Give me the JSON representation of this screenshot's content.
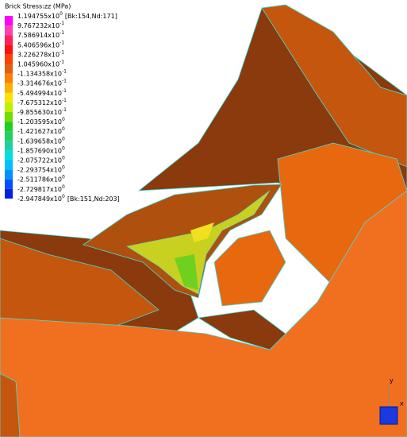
{
  "legend": {
    "title": "Brick Stress:zz  (MPa)",
    "colors": [
      "#ff00ff",
      "#ff40b0",
      "#ff2060",
      "#ff1010",
      "#ff4000",
      "#e06010",
      "#ff8000",
      "#ffb000",
      "#ffe000",
      "#c0f000",
      "#70e000",
      "#20d020",
      "#20d060",
      "#20d0a0",
      "#00e0e0",
      "#00c0ff",
      "#0090ff",
      "#0050ff",
      "#0020e0"
    ],
    "labels": [
      {
        "mantissa": "1.194755x10",
        "exp": "0",
        "note": "[Bk:154,Nd:171]"
      },
      {
        "mantissa": "9.767232x10",
        "exp": "-1"
      },
      {
        "mantissa": "7.586914x10",
        "exp": "-1"
      },
      {
        "mantissa": "5.406596x10",
        "exp": "-1"
      },
      {
        "mantissa": "3.226278x10",
        "exp": "-1"
      },
      {
        "mantissa": "1.045960x10",
        "exp": "-1"
      },
      {
        "mantissa": "-1.134358x10",
        "exp": "-1"
      },
      {
        "mantissa": "-3.314676x10",
        "exp": "-1"
      },
      {
        "mantissa": "-5.494994x10",
        "exp": "-1"
      },
      {
        "mantissa": "-7.675312x10",
        "exp": "-1"
      },
      {
        "mantissa": "-9.855630x10",
        "exp": "-1"
      },
      {
        "mantissa": "-1.203595x10",
        "exp": "0"
      },
      {
        "mantissa": "-1.421627x10",
        "exp": "0"
      },
      {
        "mantissa": "-1.639658x10",
        "exp": "0"
      },
      {
        "mantissa": "-1.857690x10",
        "exp": "0"
      },
      {
        "mantissa": "-2.075722x10",
        "exp": "0"
      },
      {
        "mantissa": "-2.293754x10",
        "exp": "0"
      },
      {
        "mantissa": "-2.511786x10",
        "exp": "0"
      },
      {
        "mantissa": "-2.729817x10",
        "exp": "0"
      },
      {
        "mantissa": "-2.947849x10",
        "exp": "0",
        "note": "[Bk:151,Nd:203]"
      }
    ]
  },
  "axes": {
    "y": "y",
    "x": "x"
  }
}
